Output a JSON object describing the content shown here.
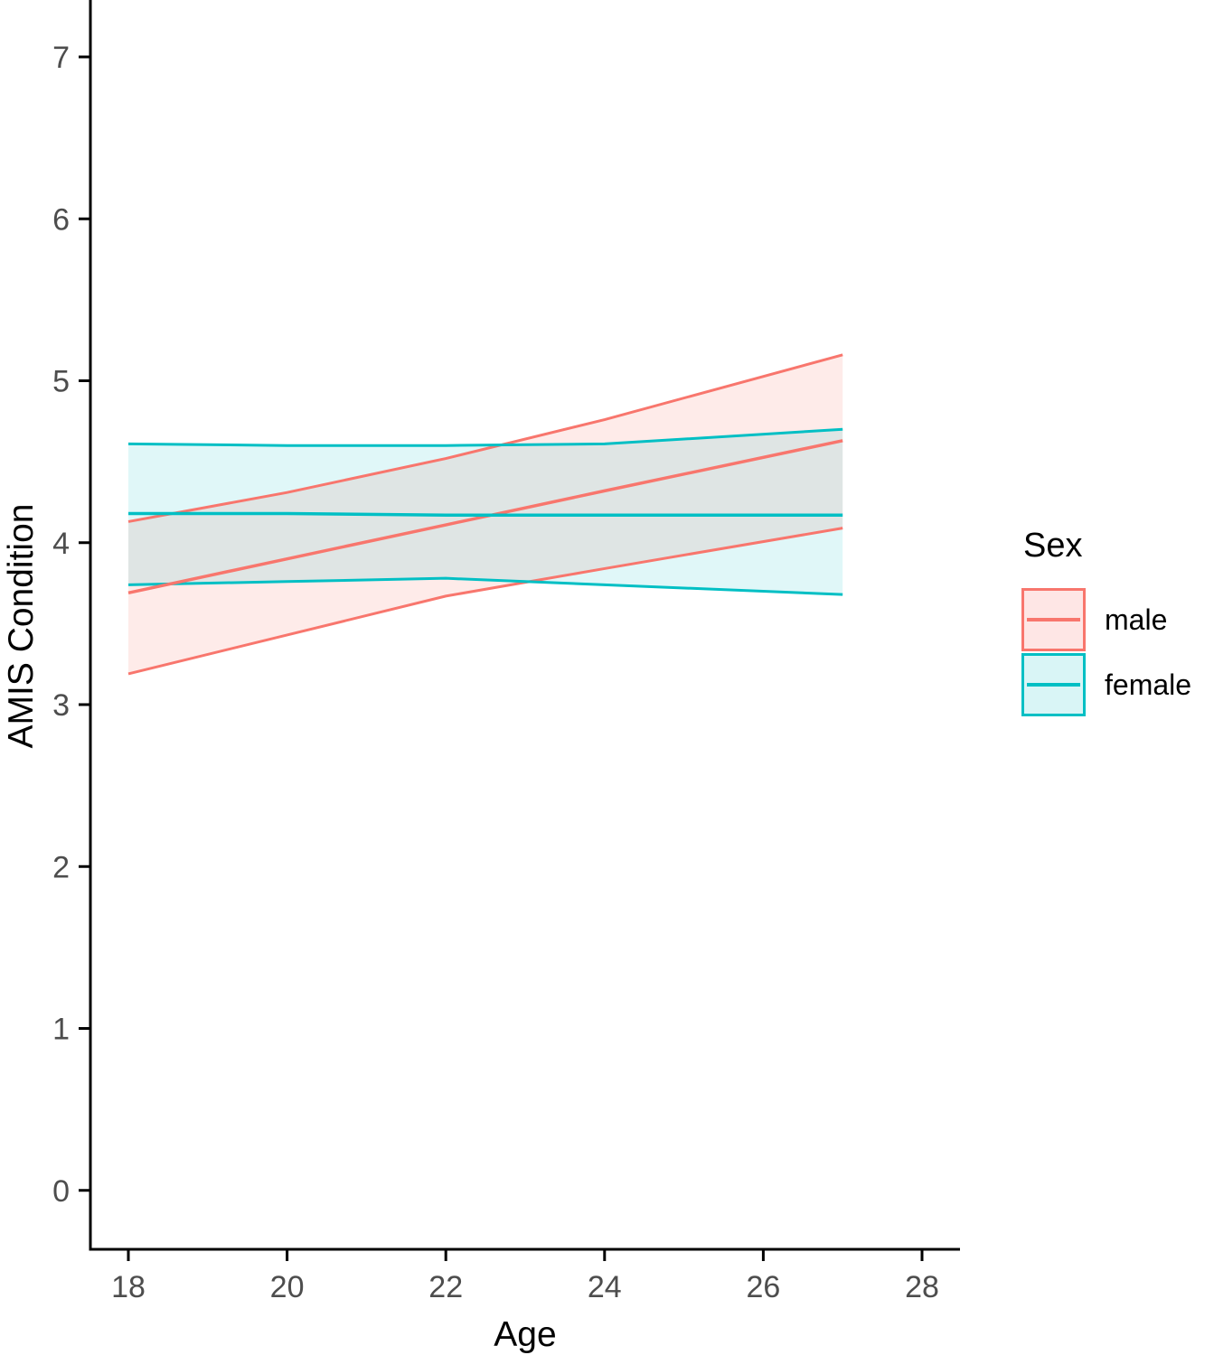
{
  "figure": {
    "background_color": "#ffffff",
    "axis_line_color": "#000000",
    "tick_label_color": "#4d4d4d"
  },
  "chart_data": {
    "type": "line",
    "title": "",
    "xlabel": "Age",
    "ylabel": "AMIS Condition",
    "x_ticks": [
      18,
      20,
      22,
      24,
      26,
      28
    ],
    "y_ticks": [
      0,
      1,
      2,
      3,
      4,
      5,
      6,
      7
    ],
    "xlim": [
      17.5,
      28.5
    ],
    "ylim": [
      -0.36,
      7.35
    ],
    "grid": "off",
    "legend_position": "right",
    "legend_title": "Sex",
    "series": [
      {
        "name": "male",
        "color": "#F8766D",
        "fill_opacity": 0.15,
        "x": [
          18,
          20,
          22,
          24,
          27
        ],
        "fit": [
          3.69,
          3.9,
          4.11,
          4.32,
          4.63
        ],
        "ci_upper": [
          4.13,
          4.31,
          4.52,
          4.76,
          5.16
        ],
        "ci_lower": [
          3.19,
          3.43,
          3.67,
          3.84,
          4.09
        ]
      },
      {
        "name": "female",
        "color": "#00BFC4",
        "fill_opacity": 0.12,
        "x": [
          18,
          20,
          22,
          24,
          27
        ],
        "fit": [
          4.18,
          4.18,
          4.17,
          4.17,
          4.17
        ],
        "ci_upper": [
          4.61,
          4.6,
          4.6,
          4.61,
          4.7
        ],
        "ci_lower": [
          3.74,
          3.76,
          3.78,
          3.74,
          3.68
        ]
      }
    ]
  },
  "legend": {
    "title": "Sex",
    "items": [
      {
        "label": "male",
        "color": "#F8766D",
        "fill_opacity": 0.18
      },
      {
        "label": "female",
        "color": "#00BFC4",
        "fill_opacity": 0.15
      }
    ]
  }
}
